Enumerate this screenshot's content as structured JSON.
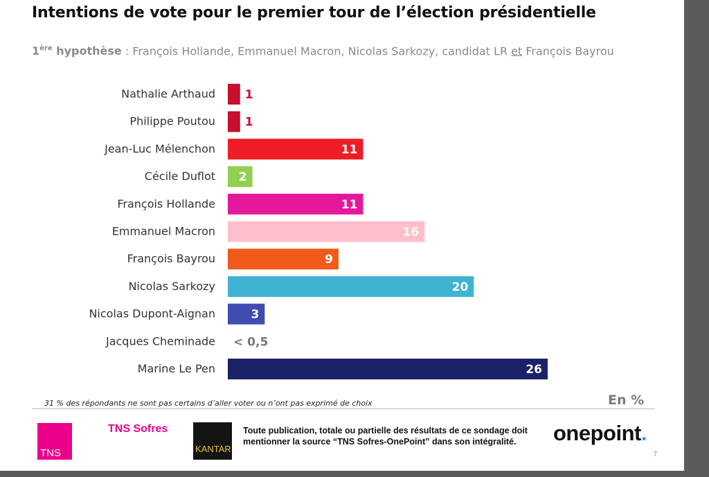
{
  "title": "Intentions de vote pour le premier tour de l’élection présidentielle",
  "subtitle": {
    "hyp_num": "1",
    "hyp_sup": "ère",
    "hyp_word": " hypothèse",
    "text_before": " : François Hollande, Emmanuel Macron, Nicolas Sarkozy,  candidat LR ",
    "text_underlined": "et",
    "text_after": " François Bayrou"
  },
  "chart_data": {
    "type": "bar",
    "orientation": "horizontal",
    "categories": [
      "Nathalie Arthaud",
      "Philippe Poutou",
      "Jean-Luc Mélenchon",
      "Cécile Duflot",
      "François Hollande",
      "Emmanuel Macron",
      "François Bayrou",
      "Nicolas Sarkozy",
      "Nicolas Dupont-Aignan",
      "Jacques Cheminade",
      "Marine Le Pen"
    ],
    "values": [
      1,
      1,
      11,
      2,
      11,
      16,
      9,
      20,
      3,
      0,
      26
    ],
    "value_labels": [
      "1",
      "1",
      "11",
      "2",
      "11",
      "16",
      "9",
      "20",
      "3",
      "< 0,5",
      "26"
    ],
    "colors": [
      "#c8102e",
      "#c8102e",
      "#ee1c25",
      "#92d050",
      "#e5189b",
      "#ffc0cb",
      "#f05a1a",
      "#3fb4d2",
      "#3f4db0",
      "#ffffff",
      "#1b2267"
    ],
    "label_colors": [
      "#c8102e",
      "#c8102e",
      "#ffffff",
      "#ffffff",
      "#ffffff",
      "#ffffff",
      "#ffffff",
      "#ffffff",
      "#ffffff",
      "#777777",
      "#ffffff"
    ],
    "xlim": [
      0,
      26
    ],
    "unit": "En %",
    "grid": false,
    "legend": "none"
  },
  "footer": {
    "note": "31 % des répondants ne sont pas certains d’aller voter ou n’ont pas exprimé de choix",
    "tns_logo_text": "TNS",
    "tns_sofres": "TNS Sofres",
    "kantar_logo_text": "KANTAR",
    "disclaimer": "Toute publication, totale ou partielle des résultats de ce sondage doit mentionner la source “TNS Sofres-OnePoint” dans son intégralité.",
    "onepoint_text": "onepoint",
    "onepoint_dot": ".",
    "page_number": "7"
  }
}
